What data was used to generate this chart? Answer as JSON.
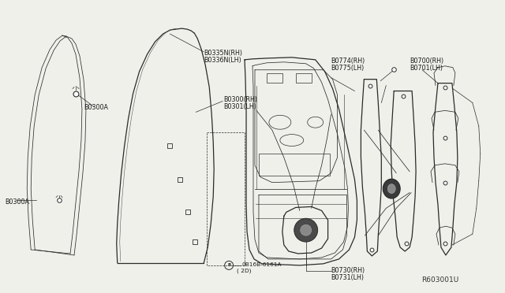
{
  "bg_color": "#f0f0eb",
  "line_color": "#2a2a2a",
  "text_color": "#1a1a1a",
  "diagram_ref": "R603001U",
  "font_size_label": 5.8,
  "font_size_ref": 6.5,
  "lw_main": 0.9,
  "lw_thin": 0.55,
  "lw_dashed": 0.55,
  "label_B0335N": "B0335N(RH)",
  "label_B0336N": "B0336N(LH)",
  "label_B0300A_top": "B0300A",
  "label_B0300A_left": "B0300A",
  "label_B0300": "B0300(RH)",
  "label_B0301": "B0301(LH)",
  "label_B0774": "B0774(RH)",
  "label_B0775": "B0775(LH)",
  "label_B0700": "B0700(RH)",
  "label_B0701": "B0701(LH)",
  "label_B0730": "B0730(RH)",
  "label_B0731": "B0731(LH)",
  "label_bolt": "0B16B-6161A",
  "label_bolt_count": "( 2D)"
}
